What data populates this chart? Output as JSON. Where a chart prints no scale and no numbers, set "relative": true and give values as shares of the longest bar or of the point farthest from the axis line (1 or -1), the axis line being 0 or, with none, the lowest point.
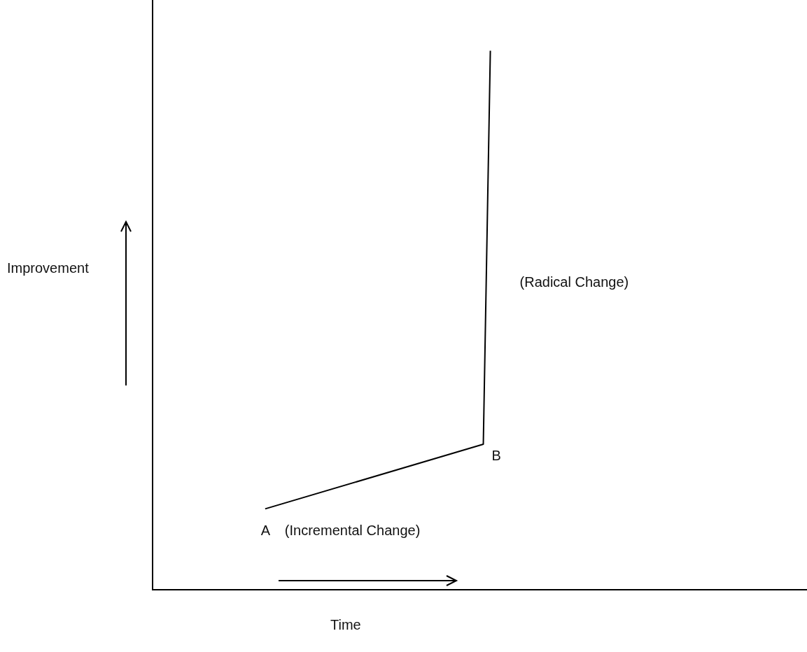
{
  "chart_data": {
    "type": "line",
    "relative": true,
    "xlabel": "Time",
    "ylabel": "Improvement",
    "tick_labels": false,
    "grid": false,
    "legend": false,
    "marker": "none",
    "line_style": "solid",
    "categories": [
      null,
      null,
      null,
      null,
      null,
      null,
      null,
      null,
      null,
      null,
      null,
      null,
      null,
      null,
      null,
      null,
      null,
      null,
      null,
      null,
      null,
      null,
      null,
      null,
      null,
      null,
      null,
      null,
      null,
      null,
      null,
      null,
      null,
      null,
      null,
      null,
      null,
      null,
      null,
      null,
      null,
      null,
      null,
      null,
      null,
      null,
      null,
      null,
      null,
      null,
      null,
      null,
      null,
      null,
      null,
      null,
      null,
      null,
      null,
      null,
      null,
      null,
      null,
      null,
      null,
      null,
      null,
      null,
      null,
      null,
      null,
      null,
      null,
      null,
      null,
      null,
      null,
      null,
      null,
      null,
      null,
      null,
      null,
      null,
      null,
      null,
      null,
      null,
      null,
      null,
      null,
      null,
      null,
      null
    ],
    "series": [
      {
        "color": "#000000",
        "values": [
          null,
          null,
          null,
          null,
          null,
          null,
          null,
          null,
          null,
          null,
          null,
          null,
          null,
          null,
          null,
          null,
          0.15,
          null,
          null,
          null,
          null,
          null,
          null,
          null,
          null,
          null,
          null,
          null,
          null,
          null,
          null,
          null,
          null,
          null,
          null,
          null,
          null,
          null,
          null,
          null,
          null,
          null,
          null,
          null,
          null,
          null,
          null,
          0.27,
          1,
          null,
          null,
          null,
          null,
          null,
          null,
          null,
          null,
          null,
          null,
          null,
          null,
          null,
          null,
          null,
          null,
          null,
          null,
          null,
          null,
          null,
          null,
          null,
          null,
          null,
          null,
          null,
          null,
          null,
          null,
          null,
          null,
          null,
          null,
          null,
          null,
          null,
          null,
          null,
          null,
          null,
          null,
          null,
          null,
          null
        ]
      }
    ],
    "annotations": [
      "A",
      "(Incremental Change)",
      "B",
      "(Radical Change)"
    ]
  }
}
